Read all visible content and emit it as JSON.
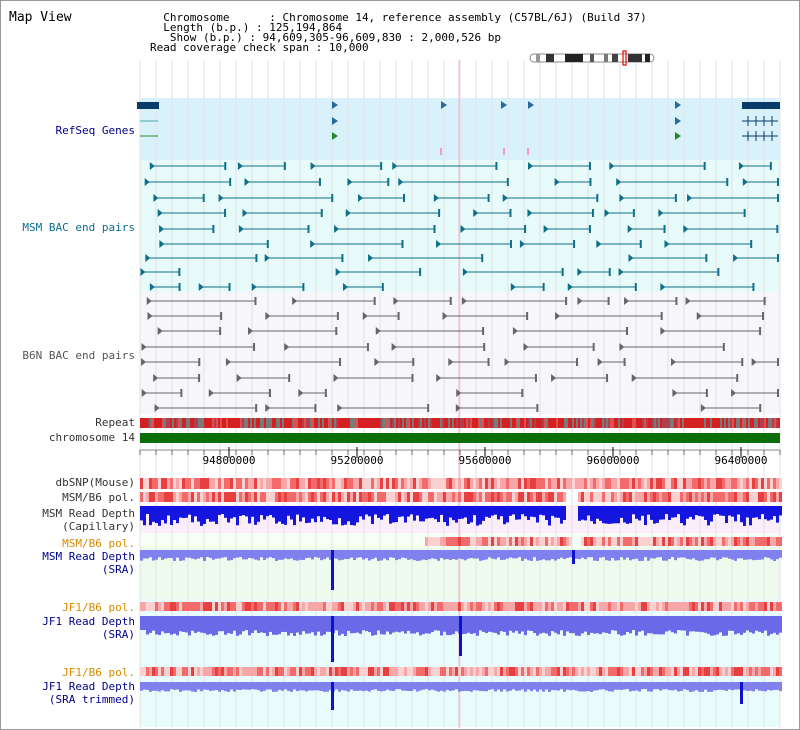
{
  "view": {
    "title": "Map View"
  },
  "header": {
    "chromosome_key": "Chromosome",
    "chromosome_value": "Chromosome 14, reference assembly (C57BL/6J) (Build 37)",
    "length_key": "Length (b.p.)",
    "length_value": "125,194,864",
    "show_key": "Show (b.p.)",
    "show_value": "94,609,305-96,609,830 : 2,000,526 bp",
    "coverage_key": "Read coverage check span",
    "coverage_value": "10,000"
  },
  "tracks": {
    "refseq": {
      "label": "RefSeq Genes"
    },
    "msm_bac": {
      "label": "MSM BAC end pairs"
    },
    "b6n_bac": {
      "label": "B6N BAC end pairs"
    },
    "repeat": {
      "label": "Repeat"
    },
    "chromosome": {
      "label": "chromosome 14"
    },
    "dbsnp": {
      "label": "dbSNP(Mouse)"
    },
    "msm_b6_pol_1": {
      "label": "MSM/B6 pol."
    },
    "msm_depth_cap": {
      "line1": "MSM Read Depth",
      "line2": "(Capillary)"
    },
    "msm_b6_pol_2": {
      "label": "MSM/B6 pol."
    },
    "msm_depth_sra": {
      "line1": "MSM Read Depth",
      "line2": "(SRA)"
    },
    "jf1_b6_pol_1": {
      "label": "JF1/B6 pol."
    },
    "jf1_depth_sra": {
      "line1": "JF1 Read Depth",
      "line2": "(SRA)"
    },
    "jf1_b6_pol_2": {
      "label": "JF1/B6 pol."
    },
    "jf1_depth_trim": {
      "line1": "JF1 Read Depth",
      "line2": "(SRA trimmed)"
    }
  },
  "axis": {
    "ticks": [
      "94800000",
      "95200000",
      "95600000",
      "96000000",
      "96400000"
    ]
  },
  "colors": {
    "refseq_bg": "#d8f1fb",
    "msm_bac_bg": "#e8fbfb",
    "b6n_bac_bg": "#f6f6fb",
    "msm_feature": "#0f6f8a",
    "b6n_feature": "#666666",
    "chromosome": "#0b6e0b",
    "pol_red": "#e83030",
    "depth_blue": "#1515e0",
    "depth_light": "#8080ee"
  }
}
